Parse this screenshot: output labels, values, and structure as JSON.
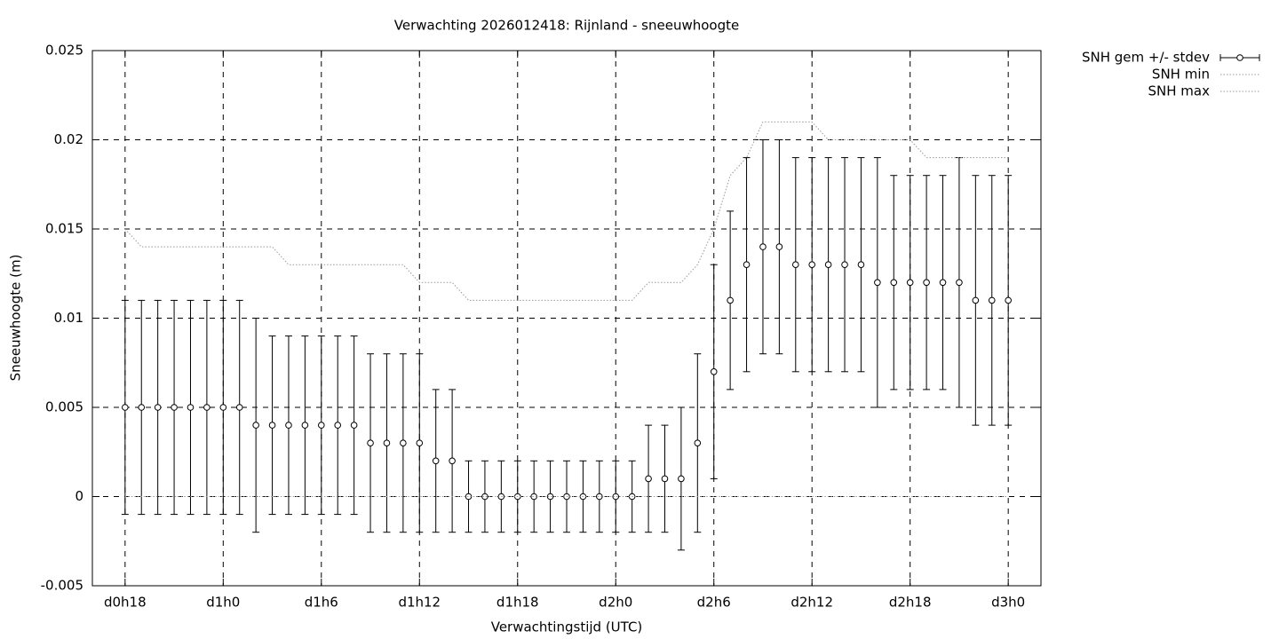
{
  "chart_data": {
    "type": "errorbar",
    "title": "Verwachting 2026012418: Rijnland - sneeuwhoogte",
    "x_label": "Verwachtingstijd (UTC)",
    "y_label": "Sneeuwhoogte (m)",
    "x": [
      18,
      19,
      20,
      21,
      22,
      23,
      24,
      25,
      26,
      27,
      28,
      29,
      30,
      31,
      32,
      33,
      34,
      35,
      36,
      37,
      38,
      39,
      40,
      41,
      42,
      43,
      44,
      45,
      46,
      47,
      48,
      49,
      50,
      51,
      52,
      53,
      54,
      55,
      56,
      57,
      58,
      59,
      60,
      61,
      62,
      63,
      64,
      65,
      66,
      67,
      68,
      69,
      70,
      71,
      72
    ],
    "series": [
      {
        "name": "SNH gem +/- stdev",
        "color": "#000000",
        "values": [
          0.005,
          0.005,
          0.005,
          0.005,
          0.005,
          0.005,
          0.005,
          0.005,
          0.004,
          0.004,
          0.004,
          0.004,
          0.004,
          0.004,
          0.004,
          0.003,
          0.003,
          0.003,
          0.003,
          0.002,
          0.002,
          0,
          0,
          0,
          0,
          0,
          0,
          0,
          0,
          0,
          0,
          0,
          0.001,
          0.001,
          0.001,
          0.003,
          0.007,
          0.011,
          0.013,
          0.014,
          0.014,
          0.013,
          0.013,
          0.013,
          0.013,
          0.013,
          0.012,
          0.012,
          0.012,
          0.012,
          0.012,
          0.012,
          0.011,
          0.011,
          0.011
        ],
        "errors": [
          0.006,
          0.006,
          0.006,
          0.006,
          0.006,
          0.006,
          0.006,
          0.006,
          0.006,
          0.005,
          0.005,
          0.005,
          0.005,
          0.005,
          0.005,
          0.005,
          0.005,
          0.005,
          0.005,
          0.004,
          0.004,
          0.002,
          0.002,
          0.002,
          0.002,
          0.002,
          0.002,
          0.002,
          0.002,
          0.002,
          0.002,
          0.002,
          0.003,
          0.003,
          0.004,
          0.005,
          0.006,
          0.005,
          0.006,
          0.006,
          0.006,
          0.006,
          0.006,
          0.006,
          0.006,
          0.006,
          0.007,
          0.006,
          0.006,
          0.006,
          0.006,
          0.007,
          0.007,
          0.007,
          0.007
        ]
      },
      {
        "name": "SNH min",
        "color": "#999999",
        "values": [
          0,
          0,
          0,
          0,
          0,
          0,
          0,
          0,
          0,
          0,
          0,
          0,
          0,
          0,
          0,
          0,
          0,
          0,
          0,
          0,
          0,
          0,
          0,
          0,
          0,
          0,
          0,
          0,
          0,
          0,
          0,
          0,
          0,
          0,
          0,
          0,
          0,
          0,
          0,
          0,
          0,
          0,
          0,
          0,
          0,
          0,
          0,
          0,
          0,
          0,
          0,
          0,
          0,
          0,
          0
        ]
      },
      {
        "name": "SNH max",
        "color": "#999999",
        "values": [
          0.015,
          0.014,
          0.014,
          0.014,
          0.014,
          0.014,
          0.014,
          0.014,
          0.014,
          0.014,
          0.013,
          0.013,
          0.013,
          0.013,
          0.013,
          0.013,
          0.013,
          0.013,
          0.012,
          0.012,
          0.012,
          0.011,
          0.011,
          0.011,
          0.011,
          0.011,
          0.011,
          0.011,
          0.011,
          0.011,
          0.011,
          0.011,
          0.012,
          0.012,
          0.012,
          0.013,
          0.015,
          0.018,
          0.019,
          0.021,
          0.021,
          0.021,
          0.021,
          0.02,
          0.02,
          0.02,
          0.02,
          0.02,
          0.02,
          0.019,
          0.019,
          0.019,
          0.019,
          0.019,
          0.019
        ]
      }
    ],
    "xlim": [
      16,
      74
    ],
    "xticks": [
      {
        "value": 18,
        "label": "d0h18"
      },
      {
        "value": 24,
        "label": "d1h0"
      },
      {
        "value": 30,
        "label": "d1h6"
      },
      {
        "value": 36,
        "label": "d1h12"
      },
      {
        "value": 42,
        "label": "d1h18"
      },
      {
        "value": 48,
        "label": "d2h0"
      },
      {
        "value": 54,
        "label": "d2h6"
      },
      {
        "value": 60,
        "label": "d2h12"
      },
      {
        "value": 66,
        "label": "d2h18"
      },
      {
        "value": 72,
        "label": "d3h0"
      }
    ],
    "ylim": [
      -0.005,
      0.025
    ],
    "yticks": [
      -0.005,
      0,
      0.005,
      0.01,
      0.015,
      0.02,
      0.025
    ],
    "grid": true,
    "legend": "outside-top-right"
  }
}
